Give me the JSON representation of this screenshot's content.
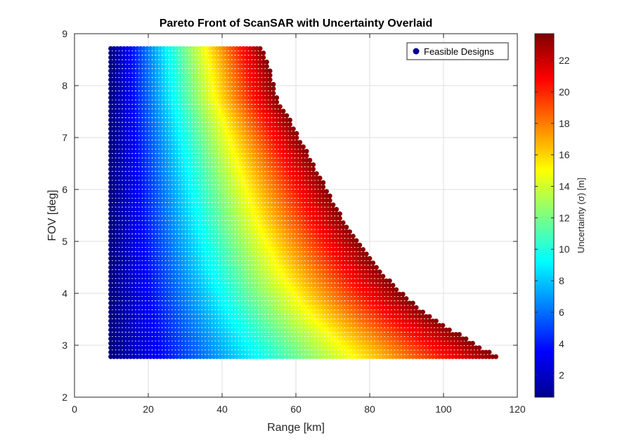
{
  "chart_data": {
    "type": "scatter",
    "title": "Pareto Front of ScanSAR with Uncertainty Overlaid",
    "xlabel": "Range [km]",
    "ylabel": "FOV [deg]",
    "xlim": [
      0,
      120
    ],
    "ylim": [
      2,
      9
    ],
    "xticks": [
      0,
      20,
      40,
      60,
      80,
      100,
      120
    ],
    "yticks": [
      2,
      3,
      4,
      5,
      6,
      7,
      8,
      9
    ],
    "grid": true,
    "legend": {
      "entries": [
        "Feasible Designs"
      ],
      "location": "top-right",
      "marker_color": "#00008f"
    },
    "series": [
      {
        "name": "Feasible Designs",
        "x_range": [
          9.8,
          114.5
        ],
        "y_range": [
          2.78,
          8.72
        ],
        "y_step": 0.086,
        "x_step": 0.9,
        "feasible_boundary": [
          [
            51.0,
            8.72
          ],
          [
            53.0,
            8.3
          ],
          [
            55.0,
            7.75
          ],
          [
            58.0,
            7.4
          ],
          [
            61.0,
            7.0
          ],
          [
            64.0,
            6.6
          ],
          [
            67.0,
            6.2
          ],
          [
            70.0,
            5.8
          ],
          [
            73.0,
            5.4
          ],
          [
            77.0,
            5.0
          ],
          [
            81.0,
            4.6
          ],
          [
            86.0,
            4.2
          ],
          [
            92.0,
            3.8
          ],
          [
            100.0,
            3.4
          ],
          [
            107.0,
            3.1
          ],
          [
            114.5,
            2.78
          ]
        ]
      }
    ],
    "colorbar": {
      "label": "Uncertainty (σ) [m]",
      "ticks": [
        2,
        4,
        6,
        8,
        10,
        12,
        14,
        16,
        18,
        20,
        22
      ],
      "tick_labels": [
        "2",
        "4",
        "6",
        "8",
        "10",
        "12",
        "14",
        "16",
        "18",
        "20",
        "22"
      ],
      "lim": [
        0.6,
        23.7
      ],
      "colormap": "jet"
    }
  }
}
